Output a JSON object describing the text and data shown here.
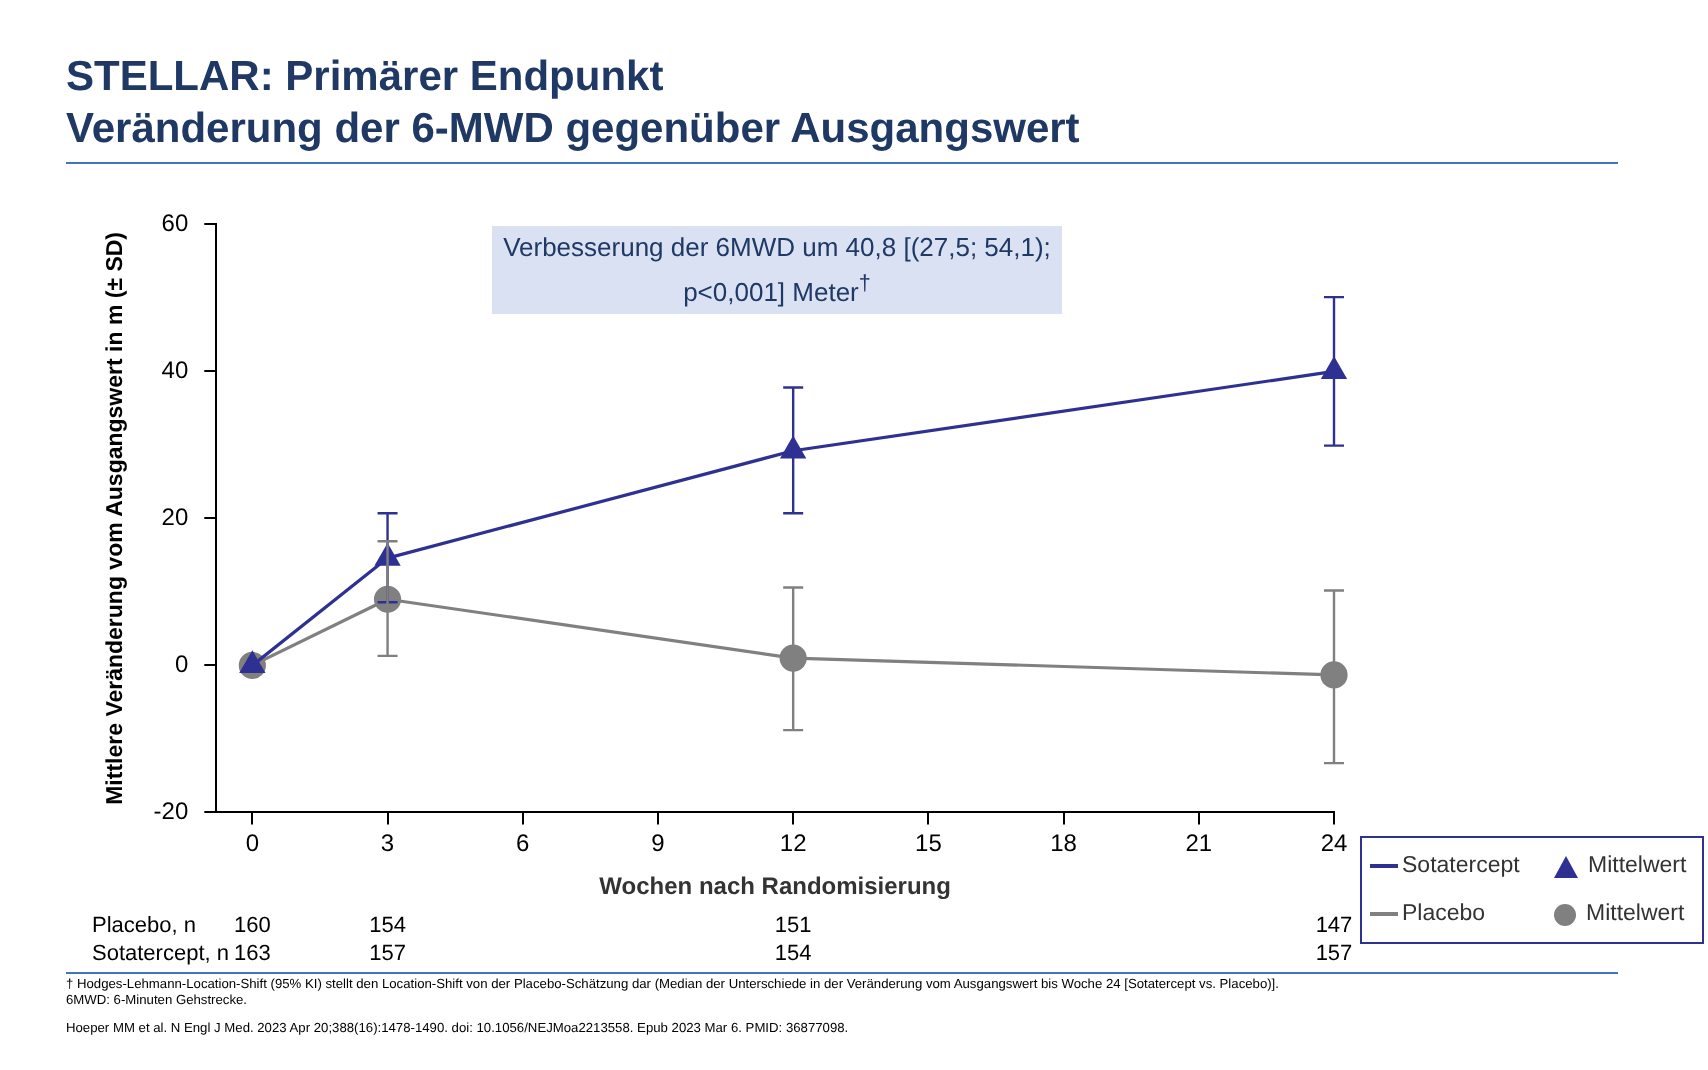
{
  "chart_data": {
    "type": "line",
    "title": "STELLAR: Primärer Endpunkt",
    "subtitle": "Veränderung der 6-MWD gegenüber Ausgangswert",
    "xlabel": "Wochen nach Randomisierung",
    "ylabel": "Mittlere Veränderung vom Ausgangswert in m (± SD)",
    "x": [
      0,
      3,
      12,
      24
    ],
    "xlim": [
      -0.8,
      24
    ],
    "xticks": [
      0,
      3,
      6,
      9,
      12,
      15,
      18,
      21,
      24
    ],
    "ylim": [
      -20,
      60
    ],
    "yticks": [
      -20,
      0,
      20,
      40,
      60
    ],
    "grid": false,
    "legend": "bottom right",
    "series": [
      {
        "name": "Sotatercept",
        "color": "#2e3192",
        "marker": "triangle",
        "values": [
          0,
          14.6,
          29.2,
          40
        ],
        "errors": [
          null,
          [
            8.6,
            20.7
          ],
          [
            20.7,
            37.8
          ],
          [
            29.9,
            50.1
          ]
        ]
      },
      {
        "name": "Placebo",
        "color": "#808080",
        "marker": "circle",
        "values": [
          0,
          9,
          1,
          -1.3
        ],
        "errors": [
          null,
          [
            1.3,
            16.9
          ],
          [
            -8.8,
            10.6
          ],
          [
            -13.3,
            10.2
          ]
        ]
      }
    ],
    "annotations": [
      "Verbesserung der 6MWD um 40,8 [(27,5; 54,1); p<0,001] Meter$^{†}$",
      "Mittelwert",
      "Mittelwert",
      "Placebo, n",
      "160",
      "154",
      "151",
      "147",
      "Sotatercept, n",
      "163",
      "157",
      "154",
      "157",
      "† Hodges-Lehmann-Location-Shift (95% KI) stellt den Location-Shift von der Placebo-Schätzung dar (Median der Unterschiede in der Veränderung vom Ausgangswert bis Woche 24 [Sotatercept vs. Placebo)].",
      "6MWD: 6-Minuten Gehstrecke.",
      "Hoeper MM et al. N Engl J Med. 2023 Apr 20;388(16):1478-1490. doi: 10.1056/NEJMoa2213558. Epub 2023 Mar 6. PMID: 36877098."
    ]
  }
}
